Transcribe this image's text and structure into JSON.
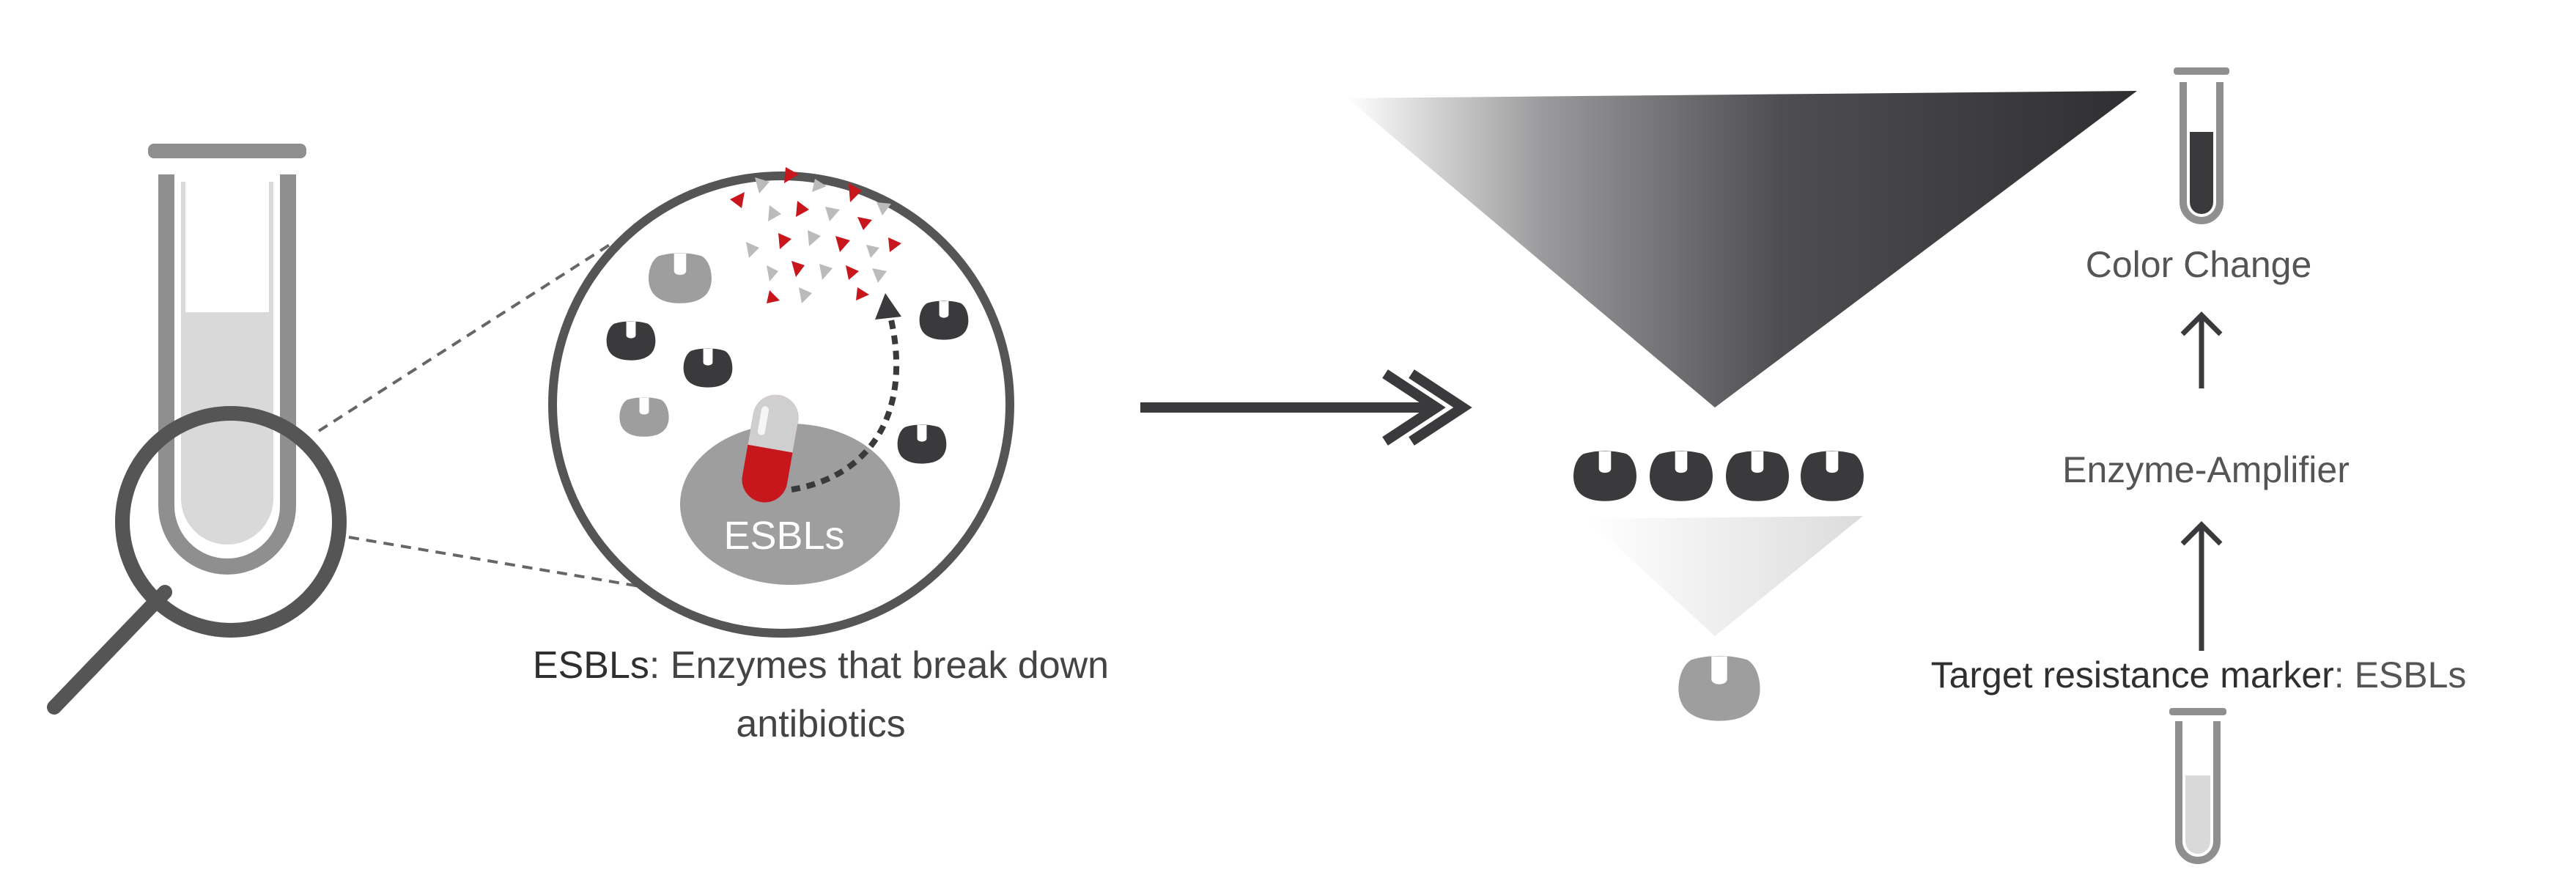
{
  "left_panel": {
    "esbl_blob_label": "ESBLs",
    "caption_term": "ESBLs",
    "caption_rest": ": Enzymes that break down",
    "caption_line2": "antibiotics"
  },
  "right_panel": {
    "output_label": "Color Change",
    "amplifier_label": "Enzyme-Amplifier",
    "target_term": "Target resistance marker",
    "target_rest": ": ESBLs"
  },
  "colors": {
    "dark": "#3a3a3c",
    "mid_gray": "#9e9e9e",
    "light_gray": "#d9d9d9",
    "red": "#c8161d",
    "white": "#ffffff"
  },
  "icons": [
    "test-tube-icon",
    "magnifier-icon",
    "enzyme-icon",
    "capsule-icon",
    "arrow-icon",
    "funnel-icon"
  ]
}
